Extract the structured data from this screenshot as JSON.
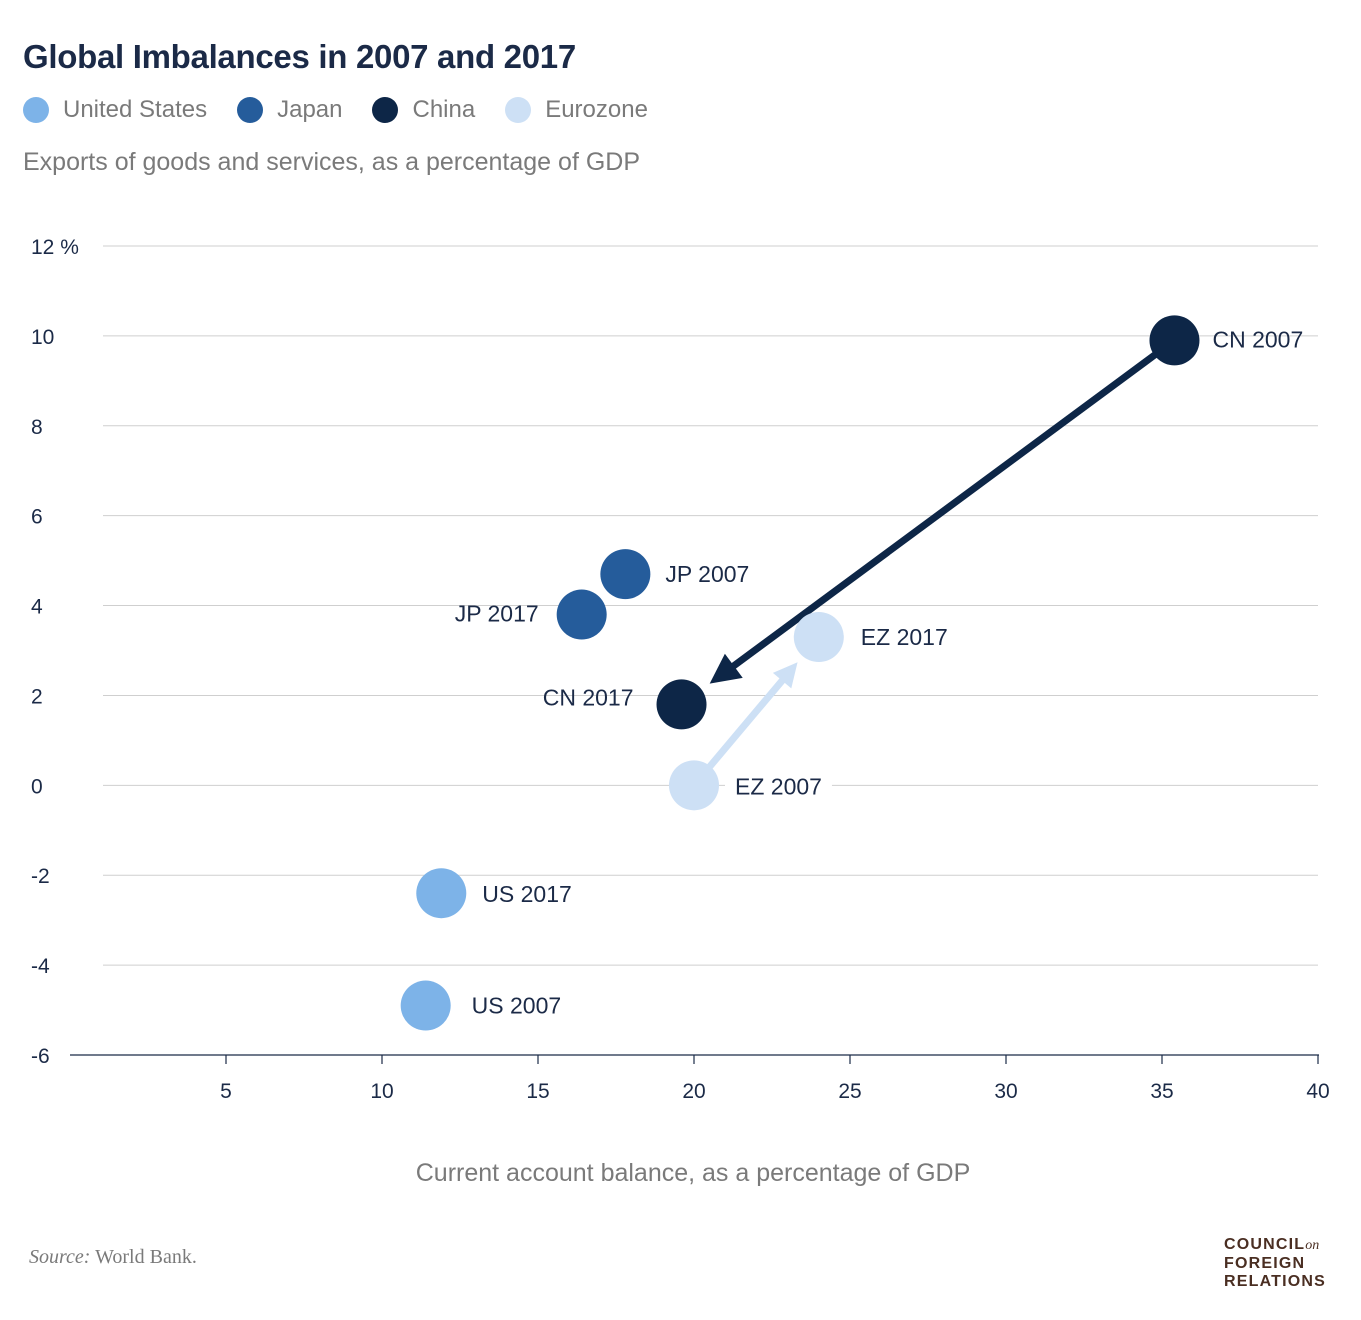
{
  "title": "Global Imbalances in 2007 and 2017",
  "subtitle": "Exports of goods and services, as a percentage of GDP",
  "legend": [
    {
      "label": "United States",
      "color": "#7db3e8"
    },
    {
      "label": "Japan",
      "color": "#255c9b"
    },
    {
      "label": "China",
      "color": "#0d2647"
    },
    {
      "label": "Eurozone",
      "color": "#cde0f5"
    }
  ],
  "source": {
    "prefix": "Source:",
    "text": "World Bank."
  },
  "logo": {
    "line1": "COUNCIL",
    "line1_suffix": "on",
    "line2": "FOREIGN",
    "line3": "RELATIONS"
  },
  "chart_data": {
    "type": "scatter",
    "title": "Global Imbalances in 2007 and 2017",
    "subtitle": "Exports of goods and services, as a percentage of GDP",
    "xlabel": "Current account balance, as a percentage of GDP",
    "ylabel": "",
    "xlim": [
      0,
      40
    ],
    "ylim": [
      -6,
      12
    ],
    "x_ticks": [
      "5",
      "10",
      "15",
      "20",
      "25",
      "30",
      "35",
      "40"
    ],
    "y_ticks": [
      "12 %",
      "10",
      "8",
      "6",
      "4",
      "2",
      "0",
      "-2",
      "-4",
      "-6"
    ],
    "grid": "horizontal",
    "legend_position": "top-left",
    "series": [
      {
        "name": "United States",
        "color": "#7db3e8",
        "points": [
          {
            "label": "US 2007",
            "x": 11.4,
            "y": -4.9
          },
          {
            "label": "US 2017",
            "x": 11.9,
            "y": -2.4
          }
        ]
      },
      {
        "name": "Japan",
        "color": "#255c9b",
        "points": [
          {
            "label": "JP 2007",
            "x": 17.8,
            "y": 4.7
          },
          {
            "label": "JP 2017",
            "x": 16.4,
            "y": 3.8
          }
        ]
      },
      {
        "name": "China",
        "color": "#0d2647",
        "points": [
          {
            "label": "CN 2007",
            "x": 35.4,
            "y": 9.9
          },
          {
            "label": "CN 2017",
            "x": 19.6,
            "y": 1.8
          }
        ]
      },
      {
        "name": "Eurozone",
        "color": "#cde0f5",
        "points": [
          {
            "label": "EZ 2007",
            "x": 20.0,
            "y": 0.0
          },
          {
            "label": "EZ 2017",
            "x": 24.0,
            "y": 3.3
          }
        ]
      }
    ],
    "arrows": [
      {
        "series": "China",
        "from": "CN 2007",
        "to": "CN 2017"
      },
      {
        "series": "Eurozone",
        "from": "EZ 2007",
        "to": "EZ 2017"
      }
    ]
  }
}
